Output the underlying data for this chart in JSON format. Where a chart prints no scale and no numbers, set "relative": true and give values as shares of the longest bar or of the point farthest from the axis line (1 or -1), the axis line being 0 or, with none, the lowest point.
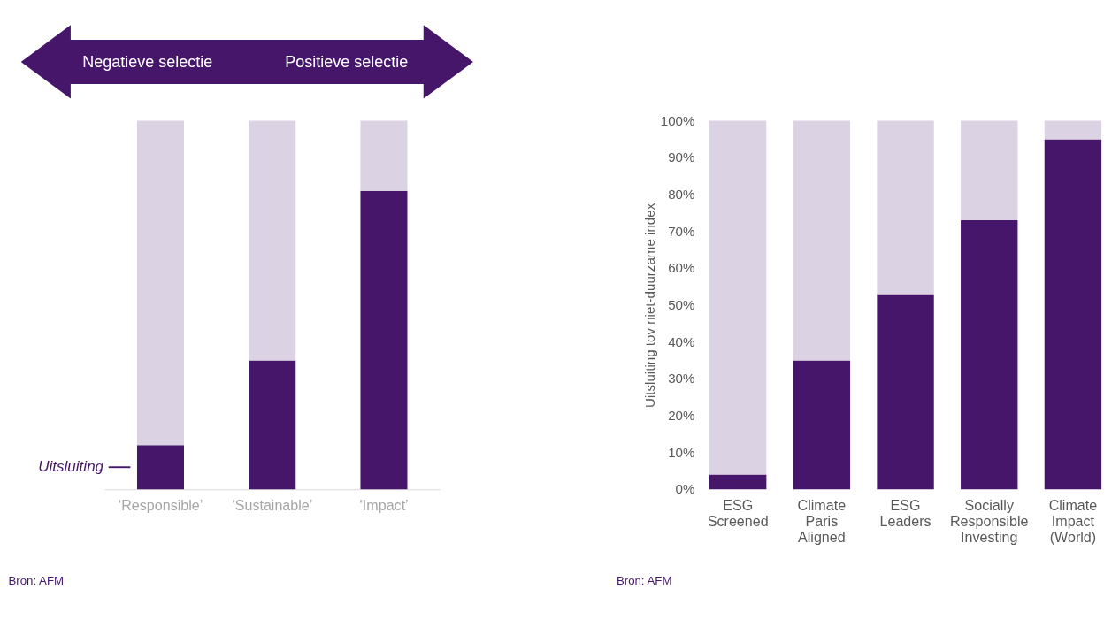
{
  "chart_data": [
    {
      "type": "bar",
      "stacked": true,
      "relative": true,
      "legend": false,
      "grid": false,
      "categories": [
        "‘Responsible’",
        "‘Sustainable’",
        "‘Impact’"
      ],
      "series": [
        {
          "color": "#46166b",
          "values": [
            0.12,
            0.35,
            0.81
          ]
        },
        {
          "color": "#dbd3e3",
          "values": [
            0.88,
            0.65,
            0.19
          ]
        }
      ],
      "annotations": [
        "Negatieve selectie",
        "Positieve selectie",
        "Uitsluiting",
        "Bron: AFM"
      ]
    },
    {
      "type": "bar",
      "stacked": true,
      "legend": false,
      "grid": false,
      "ylabel": "Uitsluiting tov niet-duurzame index",
      "categories": [
        "ESG Screened",
        "Climate Paris Aligned",
        "ESG Leaders",
        "Socially Responsible Investing",
        "Climate Impact (World)"
      ],
      "ylim": [
        0,
        100
      ],
      "yticks": [
        {
          "value": 0,
          "label": "0%"
        },
        {
          "value": 10,
          "label": "10%"
        },
        {
          "value": 20,
          "label": "20%"
        },
        {
          "value": 30,
          "label": "30%"
        },
        {
          "value": 40,
          "label": "40%"
        },
        {
          "value": 50,
          "label": "50%"
        },
        {
          "value": 60,
          "label": "60%"
        },
        {
          "value": 70,
          "label": "70%"
        },
        {
          "value": 80,
          "label": "80%"
        },
        {
          "value": 90,
          "label": "90%"
        },
        {
          "value": 100,
          "label": "100%"
        }
      ],
      "series": [
        {
          "color": "#46166b",
          "values": [
            4,
            35,
            53,
            73,
            95
          ]
        },
        {
          "color": "#dbd3e3",
          "values": [
            96,
            65,
            47,
            27,
            5
          ]
        }
      ],
      "annotations": [
        "Bron: AFM"
      ]
    }
  ]
}
